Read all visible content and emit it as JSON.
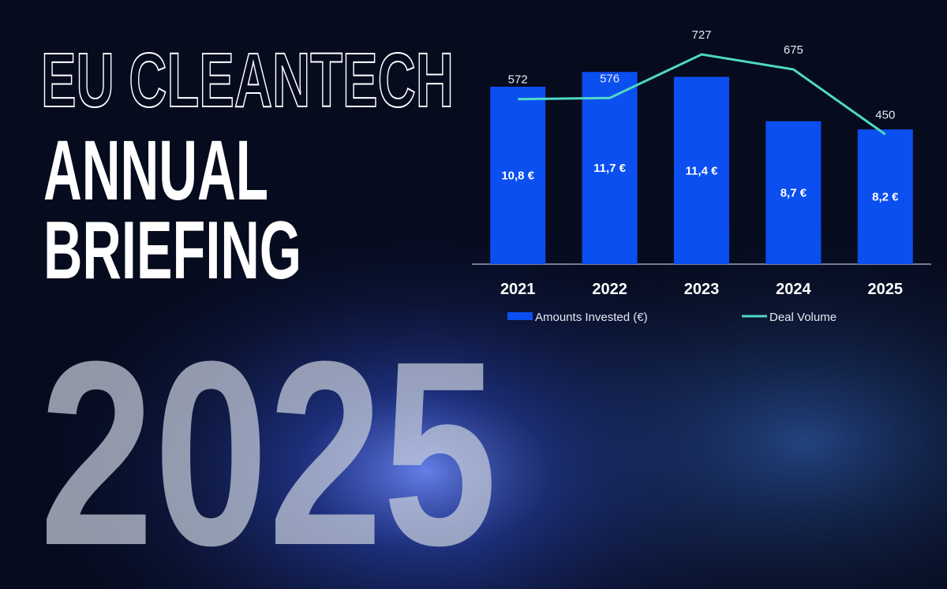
{
  "header": {
    "title": "EU CLEANTECH",
    "subtitle": [
      "ANNUAL",
      "BRIEFING"
    ],
    "year": "2025"
  },
  "chart_data": {
    "type": "bar",
    "categories": [
      "2021",
      "2022",
      "2023",
      "2024",
      "2025"
    ],
    "ylim": [
      0,
      14.4
    ],
    "y2lim": [
      0,
      820
    ],
    "series": [
      {
        "name": "Amounts Invested (€)",
        "type": "bar",
        "color": "#0b4ff0",
        "values": [
          10.8,
          11.7,
          11.4,
          8.7,
          8.2
        ],
        "value_labels": [
          "10,8 €",
          "11,7 €",
          "11,4 €",
          "8,7 €",
          "8,2 €"
        ]
      },
      {
        "name": "Deal Volume",
        "type": "line",
        "axis": "y2",
        "color": "#4fd8c6",
        "values": [
          572,
          576,
          727,
          675,
          450
        ]
      }
    ]
  }
}
